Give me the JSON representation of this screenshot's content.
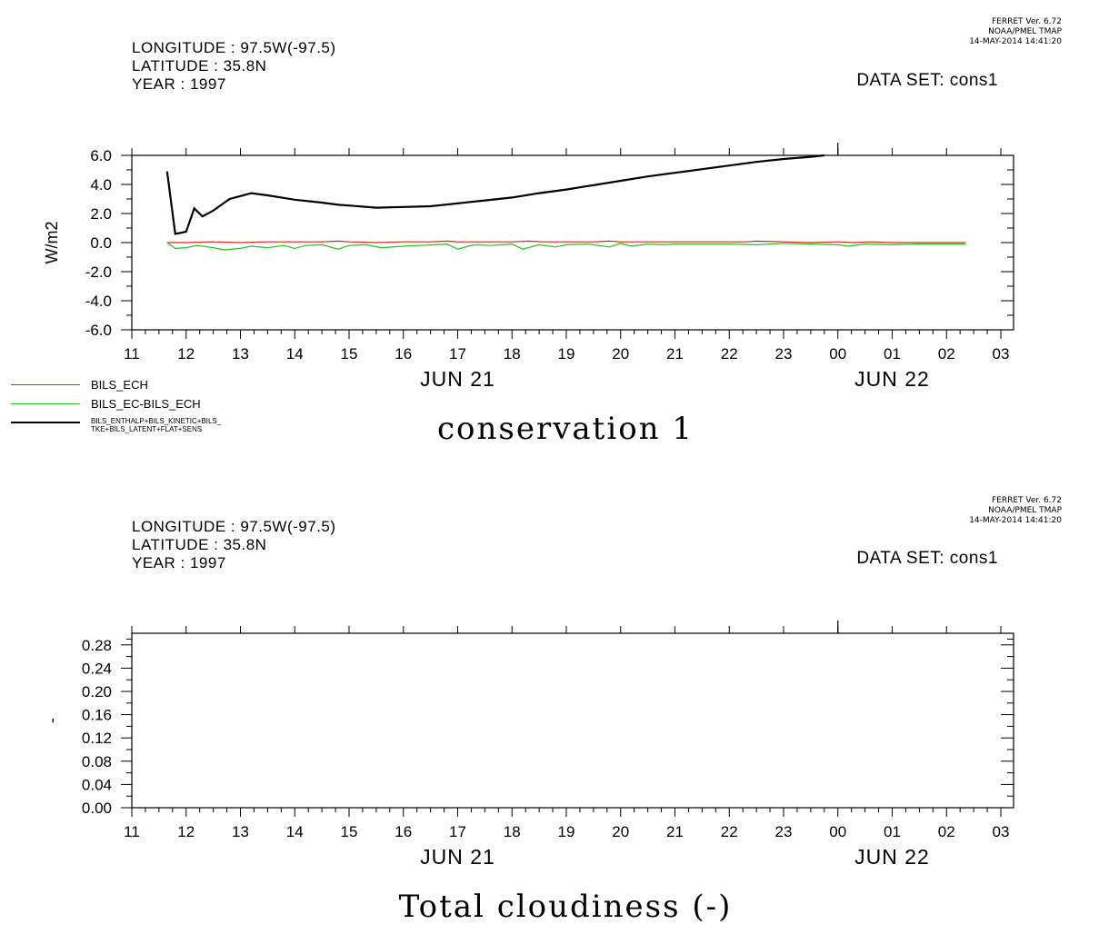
{
  "panels": [
    {
      "header": {
        "longitude": "LONGITUDE : 97.5W(-97.5)",
        "latitude": "LATITUDE : 35.8N",
        "year": "YEAR : 1997"
      },
      "ferret": {
        "line1": "FERRET Ver. 6.72",
        "line2": "NOAA/PMEL TMAP",
        "line3": "14-MAY-2014 14:41:20"
      },
      "dataset": "DATA SET: cons1",
      "title": "conservation 1",
      "legend": [
        {
          "label": "BILS_ECH",
          "color": "#d42a1a"
        },
        {
          "label": "BILS_EC-BILS_ECH",
          "color": "#22c322"
        },
        {
          "label_line1": "BILS_ENTHALP+BILS_KINETIC+BILS_",
          "label_line2": "TKE+BILS_LATENT+FLAT+SENS",
          "color": "#000000"
        }
      ]
    },
    {
      "header": {
        "longitude": "LONGITUDE : 97.5W(-97.5)",
        "latitude": "LATITUDE : 35.8N",
        "year": "YEAR : 1997"
      },
      "ferret": {
        "line1": "FERRET Ver. 6.72",
        "line2": "NOAA/PMEL TMAP",
        "line3": "14-MAY-2014 14:41:20"
      },
      "dataset": "DATA SET: cons1",
      "title": "Total cloudiness (-)"
    }
  ],
  "chart_data": [
    {
      "type": "line",
      "title": "conservation 1",
      "ylabel": "W/m2",
      "xlabel": "",
      "ylim": [
        -6.0,
        6.0
      ],
      "yticks": [
        "6.0",
        "4.0",
        "2.0",
        "0.0",
        "-2.0",
        "-4.0",
        "-6.0"
      ],
      "xlim": [
        11,
        27
      ],
      "xticks": [
        "11",
        "12",
        "13",
        "14",
        "15",
        "16",
        "17",
        "18",
        "19",
        "20",
        "21",
        "22",
        "23",
        "00",
        "01",
        "02",
        "03"
      ],
      "date_labels": [
        {
          "label": "JUN 21",
          "x": 17
        },
        {
          "label": "JUN 22",
          "x": 25
        }
      ],
      "series": [
        {
          "name": "BILS_ECH",
          "color": "#d42a1a",
          "x": [
            11.65,
            12,
            12.5,
            13,
            13.5,
            14,
            14.5,
            14.8,
            15,
            15.5,
            16,
            16.5,
            16.8,
            17,
            17.5,
            18,
            18.3,
            18.6,
            19,
            19.5,
            19.8,
            20,
            20.5,
            21,
            21.5,
            22,
            22.3,
            22.5,
            23,
            23.5,
            24,
            24.3,
            24.6,
            25,
            25.5,
            26,
            26.35
          ],
          "y": [
            0.0,
            0.0,
            0.05,
            0.0,
            0.05,
            0.05,
            0.05,
            0.1,
            0.05,
            0.0,
            0.05,
            0.05,
            0.1,
            0.05,
            0.05,
            0.05,
            0.1,
            0.05,
            0.05,
            0.05,
            0.1,
            0.05,
            0.05,
            0.05,
            0.05,
            0.05,
            0.05,
            0.1,
            0.05,
            0.0,
            0.05,
            0.0,
            0.05,
            0.0,
            0.0,
            0.0,
            0.0
          ]
        },
        {
          "name": "BILS_EC-BILS_ECH",
          "color": "#22c322",
          "x": [
            11.65,
            11.8,
            12,
            12.2,
            12.5,
            12.7,
            13,
            13.2,
            13.5,
            13.8,
            14,
            14.2,
            14.5,
            14.8,
            15,
            15.3,
            15.6,
            16,
            16.3,
            16.6,
            16.8,
            17,
            17.3,
            17.6,
            18,
            18.2,
            18.5,
            18.8,
            19,
            19.4,
            19.8,
            20,
            20.2,
            20.5,
            20.8,
            21,
            21.5,
            22,
            22.5,
            23,
            23.5,
            24,
            24.2,
            24.5,
            25,
            25.5,
            26,
            26.35
          ],
          "y": [
            0.0,
            -0.4,
            -0.35,
            -0.2,
            -0.35,
            -0.5,
            -0.4,
            -0.25,
            -0.35,
            -0.2,
            -0.4,
            -0.2,
            -0.15,
            -0.45,
            -0.2,
            -0.15,
            -0.35,
            -0.25,
            -0.2,
            -0.15,
            -0.1,
            -0.45,
            -0.15,
            -0.2,
            -0.1,
            -0.45,
            -0.15,
            -0.3,
            -0.15,
            -0.1,
            -0.3,
            -0.05,
            -0.25,
            -0.1,
            -0.15,
            -0.1,
            -0.1,
            -0.1,
            -0.15,
            -0.05,
            -0.1,
            -0.15,
            -0.25,
            -0.1,
            -0.15,
            -0.1,
            -0.1,
            -0.1
          ]
        },
        {
          "name": "BILS_ENTHALP+BILS_KINETIC+BILS_TKE+BILS_LATENT+FLAT+SENS",
          "color": "#000000",
          "x": [
            11.65,
            11.8,
            12,
            12.15,
            12.3,
            12.5,
            12.8,
            13,
            13.2,
            13.5,
            14,
            14.5,
            14.8,
            15,
            15.5,
            16,
            16.5,
            17,
            17.5,
            18,
            18.5,
            19,
            19.5,
            20,
            20.5,
            21,
            21.5,
            22,
            22.5,
            23,
            23.5,
            23.75
          ],
          "y": [
            4.9,
            0.6,
            0.75,
            2.35,
            1.8,
            2.2,
            3.0,
            3.2,
            3.4,
            3.25,
            2.95,
            2.75,
            2.6,
            2.55,
            2.4,
            2.45,
            2.5,
            2.7,
            2.9,
            3.1,
            3.4,
            3.65,
            3.95,
            4.25,
            4.55,
            4.8,
            5.05,
            5.3,
            5.55,
            5.75,
            5.9,
            6.0
          ]
        }
      ]
    },
    {
      "type": "line",
      "title": "Total cloudiness (-)",
      "ylabel": "-",
      "xlabel": "",
      "ylim": [
        0.0,
        0.3
      ],
      "yticks": [
        "0.28",
        "0.24",
        "0.20",
        "0.16",
        "0.12",
        "0.08",
        "0.04",
        "0.00"
      ],
      "xlim": [
        11,
        27
      ],
      "xticks": [
        "11",
        "12",
        "13",
        "14",
        "15",
        "16",
        "17",
        "18",
        "19",
        "20",
        "21",
        "22",
        "23",
        "00",
        "01",
        "02",
        "03"
      ],
      "date_labels": [
        {
          "label": "JUN 21",
          "x": 17
        },
        {
          "label": "JUN 22",
          "x": 25
        }
      ],
      "series": []
    }
  ]
}
